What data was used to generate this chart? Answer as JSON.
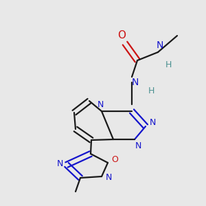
{
  "bg_color": "#e8e8e8",
  "bond_color": "#1a1a1a",
  "N_color": "#1414cc",
  "O_color": "#cc1414",
  "H_color": "#4a9090",
  "figsize": [
    3.0,
    3.0
  ],
  "dpi": 100,
  "xlim": [
    0,
    300
  ],
  "ylim": [
    0,
    300
  ]
}
